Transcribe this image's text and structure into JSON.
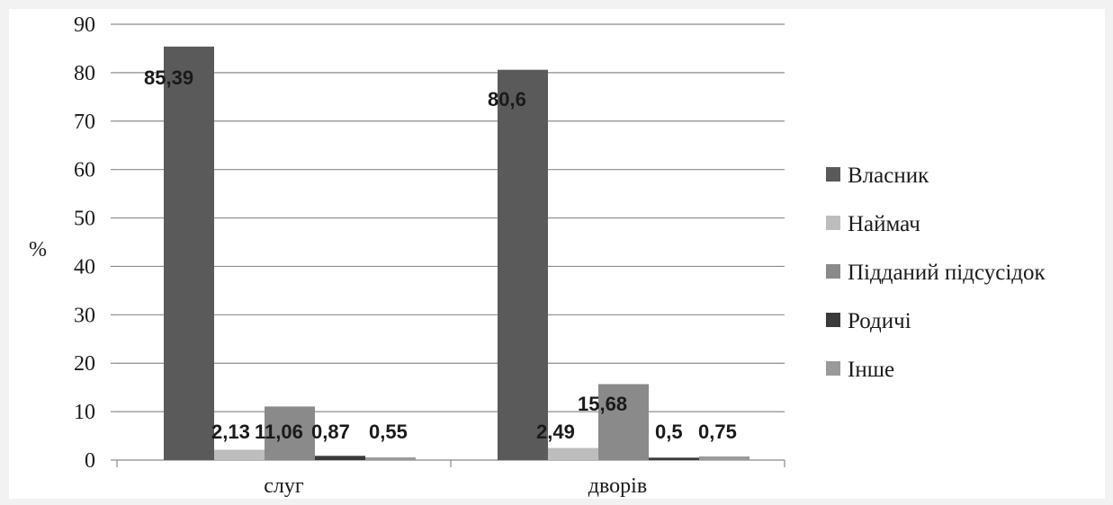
{
  "chart_data": {
    "type": "bar",
    "title": "",
    "xlabel": "",
    "ylabel": "%",
    "ylim": [
      0,
      90
    ],
    "yticks": [
      "0",
      "10",
      "20",
      "30",
      "40",
      "50",
      "60",
      "70",
      "80",
      "90"
    ],
    "grid": "horizontal",
    "legend_position": "right",
    "categories": [
      "слуг",
      "дворів"
    ],
    "series": [
      {
        "name": "Власник",
        "values": [
          85.39,
          80.6
        ],
        "labels": [
          "85,39",
          "80,6"
        ],
        "color": "#5a5a5a"
      },
      {
        "name": "Наймач",
        "values": [
          2.13,
          2.49
        ],
        "labels": [
          "2,13",
          "2,49"
        ],
        "color": "#bdbdbd"
      },
      {
        "name": "Підданий підсусідок",
        "values": [
          11.06,
          15.68
        ],
        "labels": [
          "11,06",
          "15,68"
        ],
        "color": "#8a8a8a"
      },
      {
        "name": "Родичі",
        "values": [
          0.87,
          0.5
        ],
        "labels": [
          "0,87",
          "0,5"
        ],
        "color": "#3a3a3a"
      },
      {
        "name": "Інше",
        "values": [
          0.55,
          0.75
        ],
        "labels": [
          "0,55",
          "0,75"
        ],
        "color": "#9a9a9a"
      }
    ]
  }
}
